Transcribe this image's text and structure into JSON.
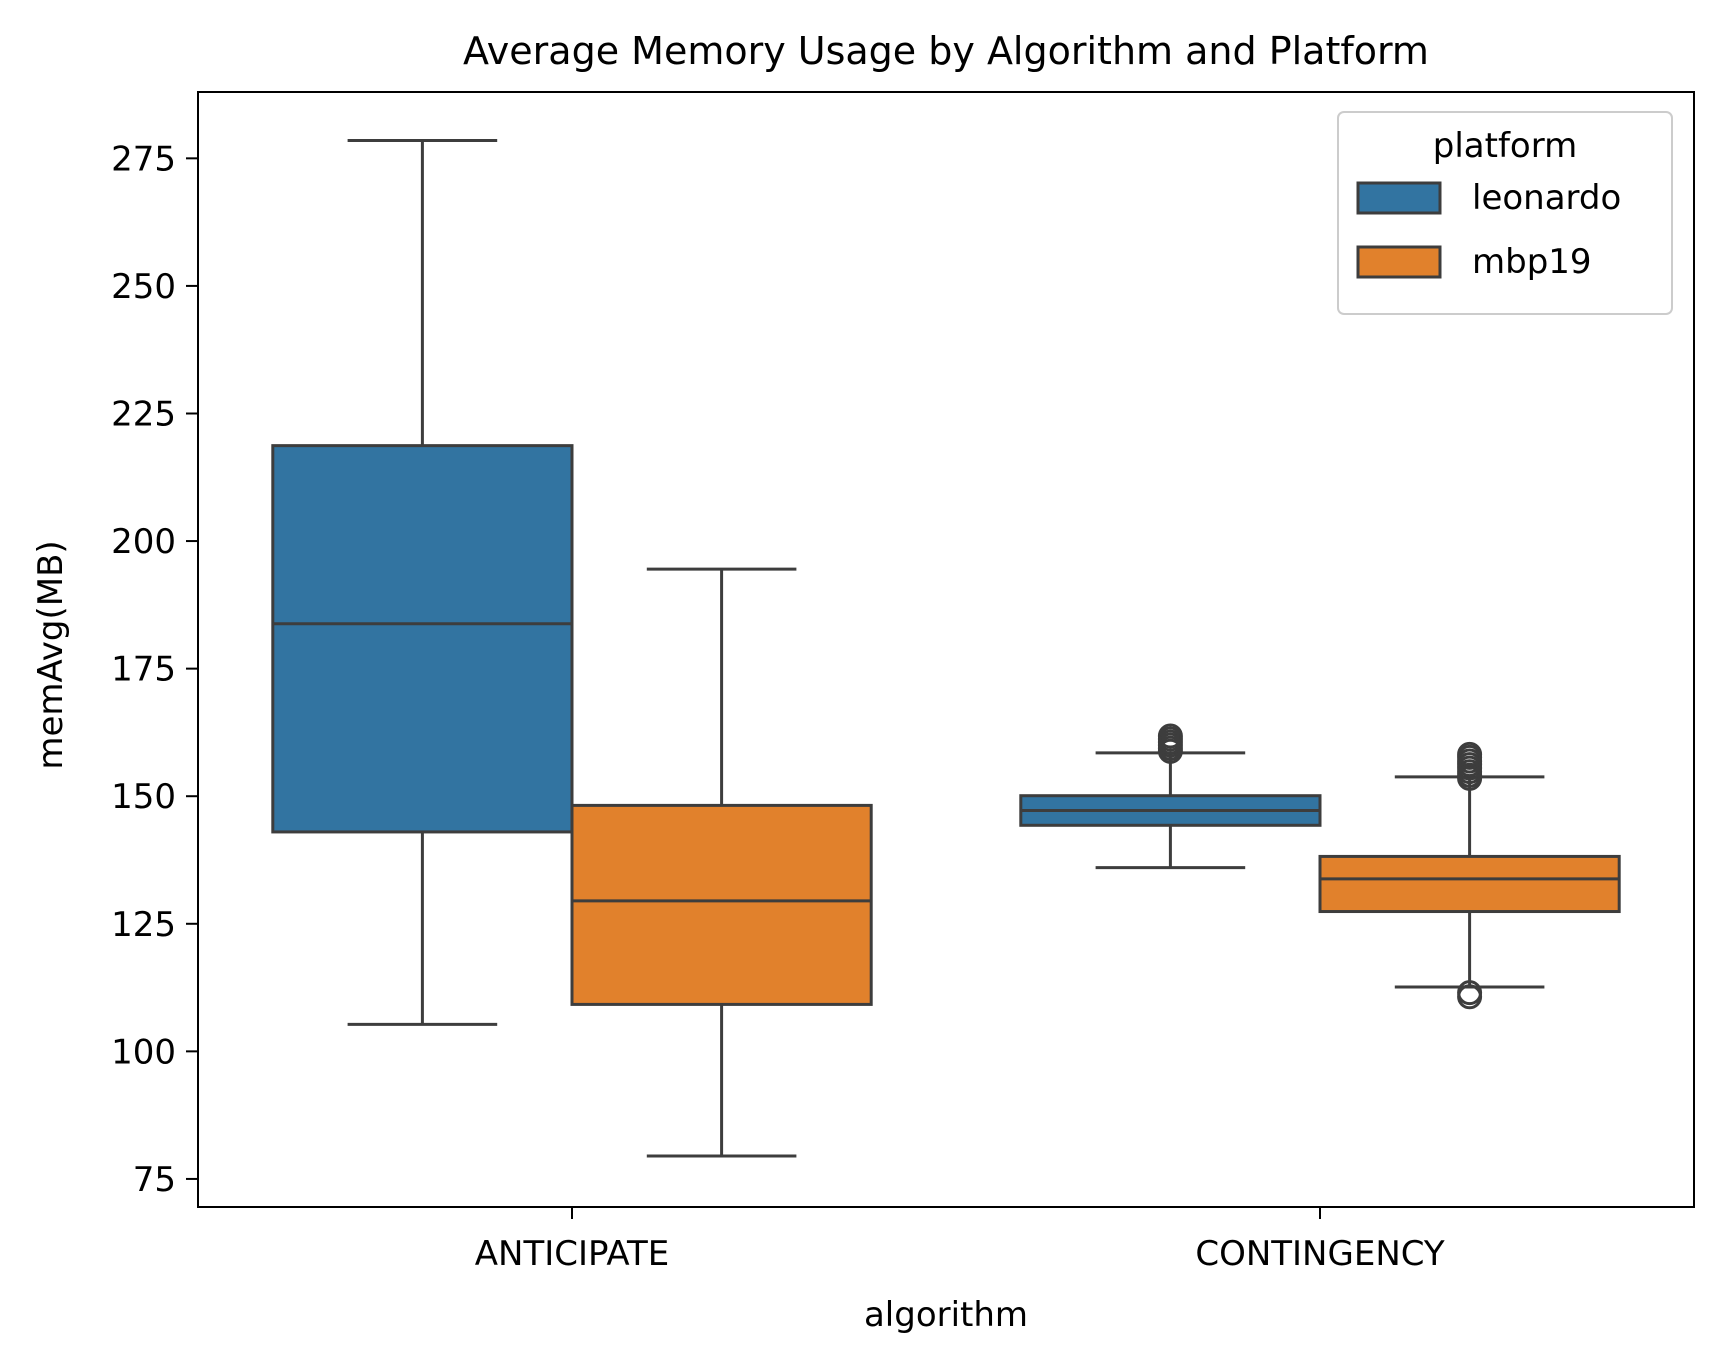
{
  "chart_data": {
    "type": "box",
    "title": "Average Memory Usage by Algorithm and Platform",
    "xlabel": "algorithm",
    "ylabel": "memAvg(MB)",
    "categories": [
      "ANTICIPATE",
      "CONTINGENCY"
    ],
    "ylim": [
      69.5,
      288
    ],
    "yticks": [
      75,
      100,
      125,
      150,
      175,
      200,
      225,
      250,
      275
    ],
    "legend": {
      "title": "platform",
      "position": "top-right"
    },
    "series": [
      {
        "name": "leonardo",
        "color": "#3274a1",
        "boxes": [
          {
            "category": "ANTICIPATE",
            "whisker_low": 105.3,
            "q1": 143.0,
            "median": 183.8,
            "q3": 218.7,
            "whisker_high": 278.5,
            "outliers": []
          },
          {
            "category": "CONTINGENCY",
            "whisker_low": 136.0,
            "q1": 144.3,
            "median": 147.2,
            "q3": 150.1,
            "whisker_high": 158.5,
            "outliers": [
              158.8,
              159.4,
              160.0,
              160.6,
              161.2,
              161.8
            ]
          }
        ]
      },
      {
        "name": "mbp19",
        "color": "#e1812c",
        "boxes": [
          {
            "category": "ANTICIPATE",
            "whisker_low": 79.5,
            "q1": 109.2,
            "median": 129.5,
            "q3": 148.2,
            "whisker_high": 194.5,
            "outliers": []
          },
          {
            "category": "CONTINGENCY",
            "whisker_low": 112.6,
            "q1": 127.4,
            "median": 133.8,
            "q3": 138.2,
            "whisker_high": 153.8,
            "outliers": [
              110.7,
              111.5,
              153.5,
              154.1,
              154.8,
              155.5,
              156.2,
              156.9,
              157.6,
              158.2
            ]
          }
        ]
      }
    ]
  }
}
